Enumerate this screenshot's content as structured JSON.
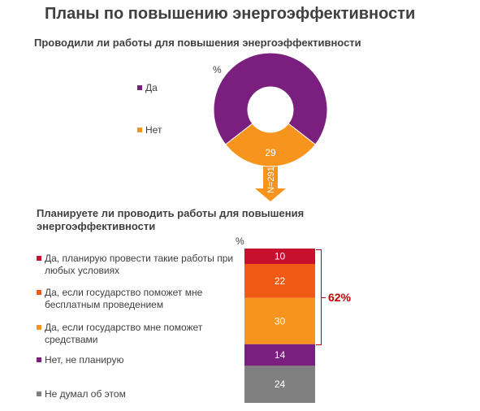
{
  "title": "Планы по повышению энергоэффективности",
  "colors": {
    "purple": "#7b1f7e",
    "orange": "#f7941d",
    "red": "#c8102e",
    "dark_orange": "#f05a14",
    "grey": "#808080",
    "accent_red": "#c00000"
  },
  "chart_data": [
    {
      "type": "pie",
      "title": "Проводили ли работы для повышения энергоэффективности",
      "unit_label": "%",
      "categories": [
        "Да",
        "Нет"
      ],
      "values": [
        71,
        29
      ],
      "colors": [
        "#7b1f7e",
        "#f7941d"
      ],
      "donut": true,
      "arrow_label": "N=291",
      "legend_placement": "left"
    },
    {
      "type": "bar",
      "stacked": true,
      "title": "Планируете ли проводить работы для повышения энергоэффективности",
      "unit_label": "%",
      "categories": [
        "Да, планирую провести такие работы при любых условиях",
        "Да, если государство поможет мне бесплатным проведением",
        "Да, если государство мне поможет средствами",
        "Нет, не планирую",
        "Не думал об этом"
      ],
      "values": [
        10,
        22,
        30,
        14,
        24
      ],
      "colors": [
        "#c8102e",
        "#f05a14",
        "#f7941d",
        "#7b1f7e",
        "#808080"
      ],
      "bracket_label": "62%",
      "legend_placement": "left"
    }
  ]
}
